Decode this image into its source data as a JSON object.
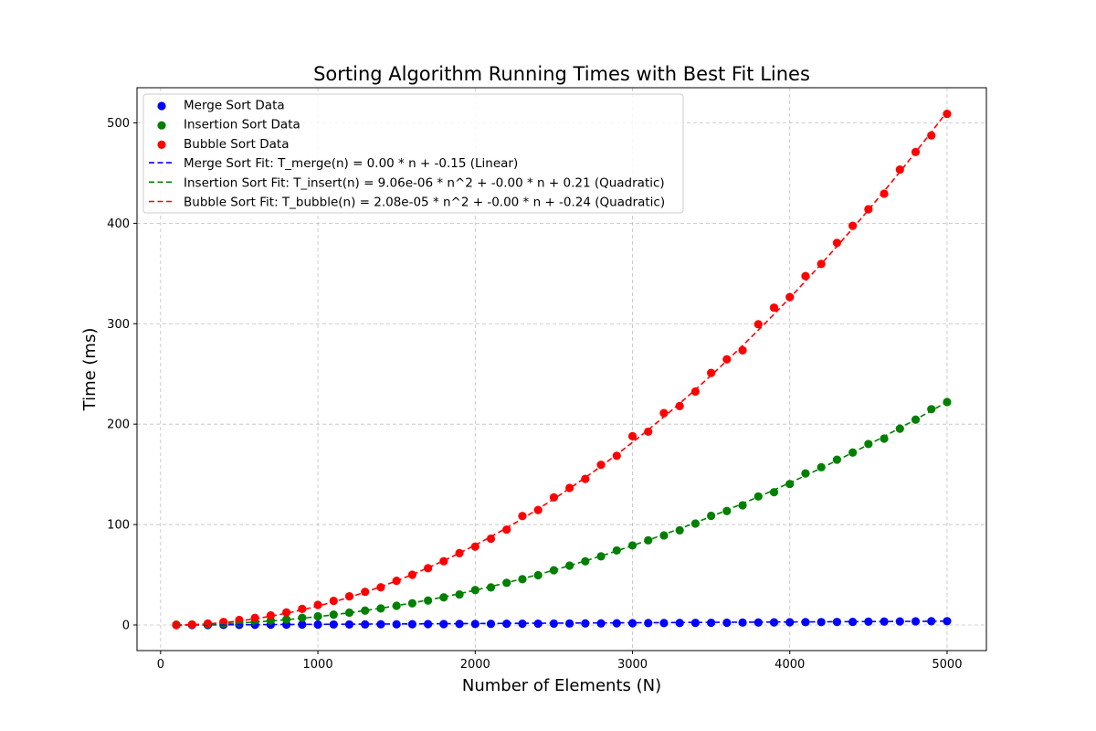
{
  "chart_data": {
    "type": "scatter",
    "title": "Sorting Algorithm Running Times with Best Fit Lines",
    "xlabel": "Number of Elements (N)",
    "ylabel": "Time (ms)",
    "xlim": [
      -150,
      5250
    ],
    "ylim": [
      -25.5,
      535
    ],
    "xticks": [
      0,
      1000,
      2000,
      3000,
      4000,
      5000
    ],
    "yticks": [
      0,
      100,
      200,
      300,
      400,
      500
    ],
    "grid": true,
    "legend_position": "upper-left",
    "x": [
      100,
      200,
      300,
      400,
      500,
      600,
      700,
      800,
      900,
      1000,
      1100,
      1200,
      1300,
      1400,
      1500,
      1600,
      1700,
      1800,
      1900,
      2000,
      2100,
      2200,
      2300,
      2400,
      2500,
      2600,
      2700,
      2800,
      2900,
      3000,
      3100,
      3200,
      3300,
      3400,
      3500,
      3600,
      3700,
      3800,
      3900,
      4000,
      4100,
      4200,
      4300,
      4400,
      4500,
      4600,
      4700,
      4800,
      4900,
      5000
    ],
    "series": [
      {
        "name": "Merge Sort Data",
        "color": "#0000ff",
        "values": [
          0.0,
          0.0,
          0.0,
          0.1,
          0.1,
          0.2,
          0.3,
          0.3,
          0.4,
          0.4,
          0.5,
          0.5,
          0.6,
          0.7,
          0.7,
          0.8,
          0.9,
          0.9,
          1.0,
          1.0,
          1.1,
          1.2,
          1.2,
          1.3,
          1.4,
          1.5,
          1.6,
          1.6,
          1.7,
          1.8,
          1.9,
          1.9,
          2.0,
          2.1,
          2.2,
          2.3,
          2.4,
          2.5,
          2.6,
          2.7,
          2.8,
          2.9,
          3.0,
          3.1,
          3.3,
          3.4,
          3.5,
          3.6,
          3.7,
          3.8
        ]
      },
      {
        "name": "Insertion Sort Data",
        "color": "#008000",
        "values": [
          0.3,
          0.4,
          0.8,
          1.7,
          2.4,
          3.4,
          4.4,
          5.5,
          7.1,
          8.6,
          10.3,
          12.3,
          14.3,
          16.5,
          19.1,
          21.6,
          24.3,
          27.5,
          30.4,
          34.8,
          37.4,
          42.0,
          45.6,
          49.6,
          54.5,
          59.1,
          63.4,
          68.3,
          74.2,
          79.2,
          84.3,
          89.2,
          94.3,
          101.0,
          108.7,
          113.5,
          119.2,
          128.0,
          132.2,
          140.4,
          150.9,
          157.1,
          164.6,
          171.7,
          180.2,
          185.6,
          195.5,
          204.5,
          214.9,
          222.0
        ]
      },
      {
        "name": "Bubble Sort Data",
        "color": "#ff0000",
        "values": [
          0.0,
          0.5,
          1.5,
          3.0,
          5.0,
          7.0,
          9.5,
          12.5,
          16.0,
          20.0,
          24.0,
          28.5,
          33.0,
          37.5,
          44.0,
          50.0,
          56.5,
          63.5,
          71.5,
          78.0,
          86.0,
          95.0,
          108.5,
          114.5,
          127.0,
          136.5,
          145.5,
          159.5,
          168.5,
          188.0,
          192.5,
          211.0,
          218.0,
          232.5,
          251.0,
          264.5,
          273.5,
          299.5,
          316.0,
          326.5,
          347.5,
          359.5,
          380.5,
          397.5,
          414.0,
          429.5,
          453.5,
          471.0,
          487.5,
          509.0
        ]
      }
    ],
    "fits": [
      {
        "name": "Merge Sort Fit: T_merge(n) = 0.00 * n + -0.15 (Linear)",
        "color": "#0000ff",
        "a": 0,
        "b": 0.00079,
        "c": -0.15
      },
      {
        "name": "Insertion Sort Fit: T_insert(n) = 9.06e-06 * n^2 + -0.00 * n + 0.21 (Quadratic)",
        "color": "#008000",
        "a": 9.06e-06,
        "b": -0.0009,
        "c": 0.21
      },
      {
        "name": "Bubble Sort Fit: T_bubble(n) = 2.08e-05 * n^2 + -0.00 * n + -0.24 (Quadratic)",
        "color": "#ff0000",
        "a": 2.08e-05,
        "b": -0.0017,
        "c": -0.24
      }
    ]
  }
}
